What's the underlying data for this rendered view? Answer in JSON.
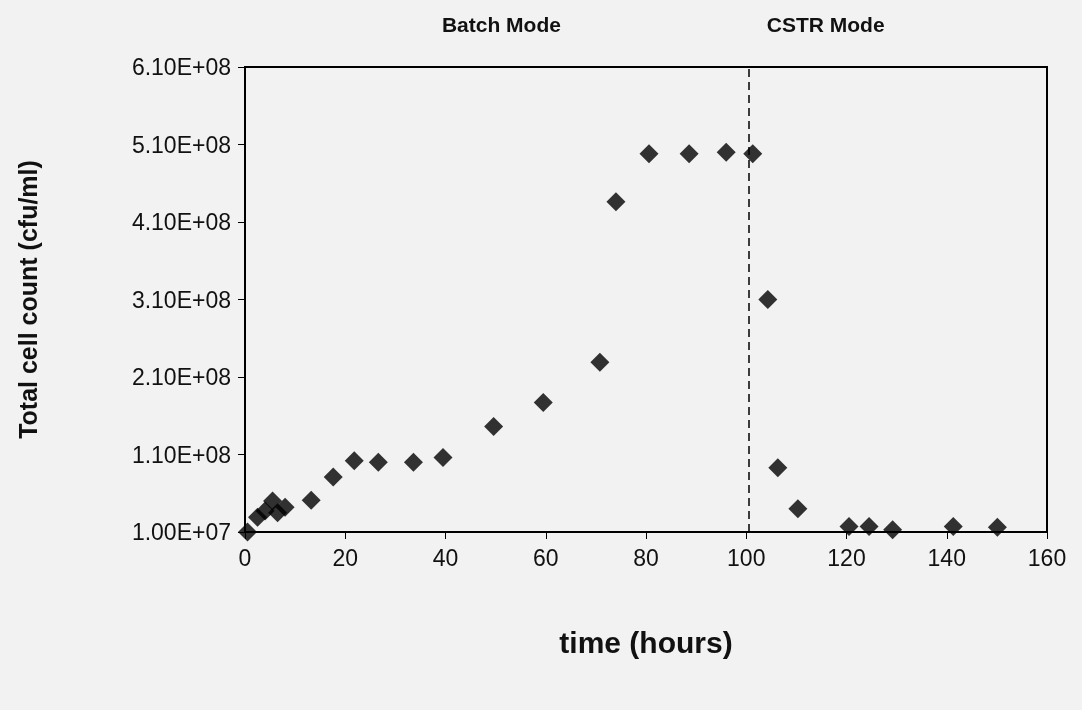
{
  "chart_data": {
    "type": "scatter",
    "xlabel": "time (hours)",
    "ylabel": "Total cell count (cfu/ml)",
    "annotations": [
      "Batch Mode",
      "CSTR Mode"
    ],
    "x": [
      0.5,
      1.5,
      2.5,
      4,
      5.5,
      6.5,
      8,
      13.2,
      17.6,
      21.8,
      26.6,
      33.6,
      39.5,
      49.6,
      59.5,
      70.8,
      74,
      80.6,
      88.6,
      96,
      101.3,
      104.3,
      106.3,
      110.3,
      120.5,
      124.5,
      129.2,
      141.3,
      150.1
    ],
    "series": [
      {
        "color": "#000000",
        "values": [
          10000000.0,
          null,
          29000000.0,
          37000000.0,
          50000000.0,
          35000000.0,
          42000000.0,
          51000000.0,
          81000000.0,
          102000000.0,
          100000000.0,
          100000000.0,
          106000000.0,
          146000000.0,
          177000000.0,
          229000000.0,
          436000000.0,
          498000000.0,
          498000000.0,
          500000000.0,
          498000000.0,
          310000000.0,
          93000000.0,
          40000000.0,
          17000000.0,
          17000000.0,
          13000000.0,
          17000000.0,
          16000000.0
        ]
      }
    ],
    "xlim": [
      0,
      160
    ],
    "xticks": [
      0,
      20,
      40,
      60,
      80,
      100,
      120,
      140,
      160
    ],
    "ylim": [
      10000000.0,
      610000000.0
    ],
    "yticks": [
      {
        "value": 10000000.0,
        "label": "1.00E+07"
      },
      {
        "value": 110000000.0,
        "label": "1.10E+08"
      },
      {
        "value": 210000000.0,
        "label": "2.10E+08"
      },
      {
        "value": 310000000.0,
        "label": "3.10E+08"
      },
      {
        "value": 410000000.0,
        "label": "4.10E+08"
      },
      {
        "value": 510000000.0,
        "label": "5.10E+08"
      },
      {
        "value": 610000000.0,
        "label": "6.10E+08"
      }
    ],
    "ref_lines": [
      {
        "axis": "x",
        "value": 100.5,
        "color": "#000000",
        "line_style": "dashed"
      }
    ],
    "marker": "diamond",
    "grid": false
  }
}
